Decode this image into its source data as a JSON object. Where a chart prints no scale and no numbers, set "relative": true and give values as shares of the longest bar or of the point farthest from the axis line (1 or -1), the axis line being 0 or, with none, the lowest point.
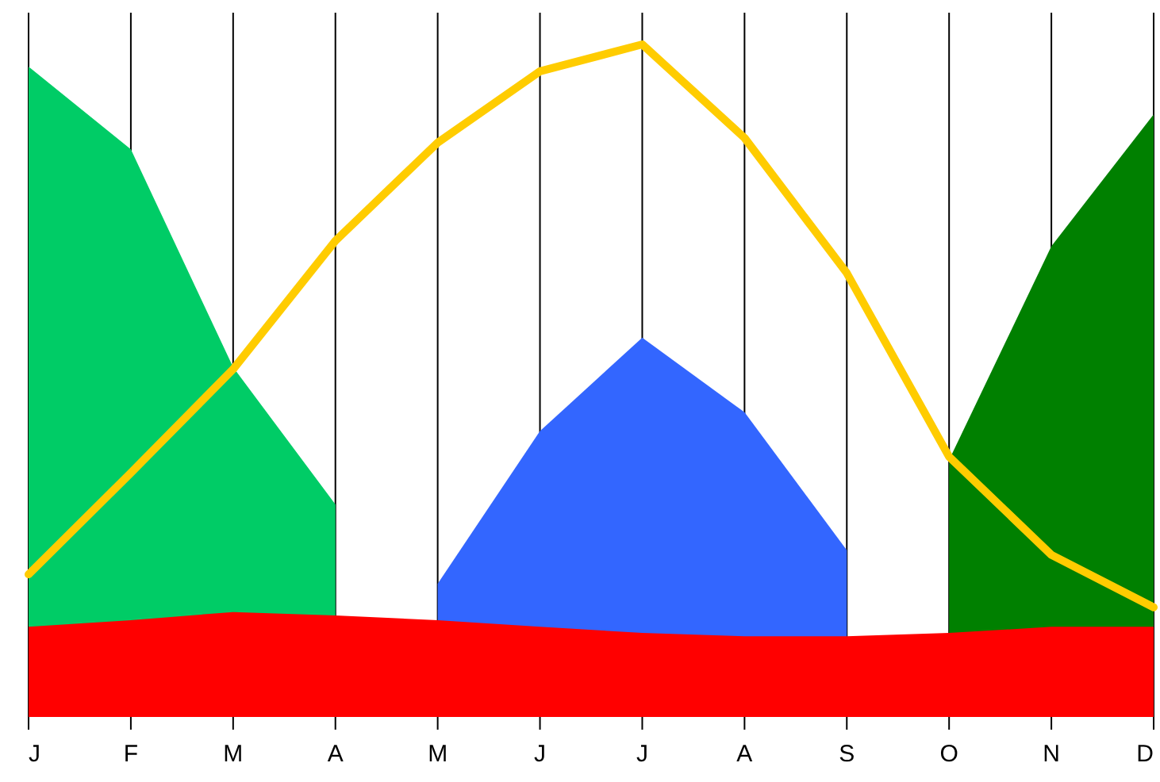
{
  "chart_data": {
    "type": "area",
    "relative": true,
    "grid": "x",
    "marker": "none",
    "categories": [
      "J",
      "F",
      "M",
      "A",
      "M",
      "J",
      "J",
      "A",
      "S",
      "O",
      "N",
      "D"
    ],
    "series": [
      {
        "color": "#00cc66",
        "values": [
          0.967,
          0.844,
          0.52,
          0.316,
          null,
          null,
          null,
          null,
          null,
          null,
          null,
          null
        ]
      },
      {
        "color": "#3366ff",
        "values": [
          null,
          null,
          null,
          null,
          0.198,
          0.425,
          0.564,
          0.453,
          0.248,
          null,
          null,
          null
        ]
      },
      {
        "color": "#008000",
        "values": [
          null,
          null,
          null,
          null,
          null,
          null,
          null,
          null,
          null,
          0.382,
          0.7,
          0.896
        ]
      },
      {
        "color": "#ff0000",
        "values": [
          0.134,
          0.144,
          0.156,
          0.151,
          0.144,
          0.134,
          0.125,
          0.12,
          0.12,
          0.125,
          0.134,
          0.134
        ]
      },
      {
        "type": "line",
        "color": "#ffcc00",
        "line_style": "solid",
        "values": [
          0.212,
          0.363,
          0.517,
          0.708,
          0.854,
          0.96,
          1,
          0.861,
          0.66,
          0.387,
          0.241,
          0.163
        ]
      }
    ]
  }
}
